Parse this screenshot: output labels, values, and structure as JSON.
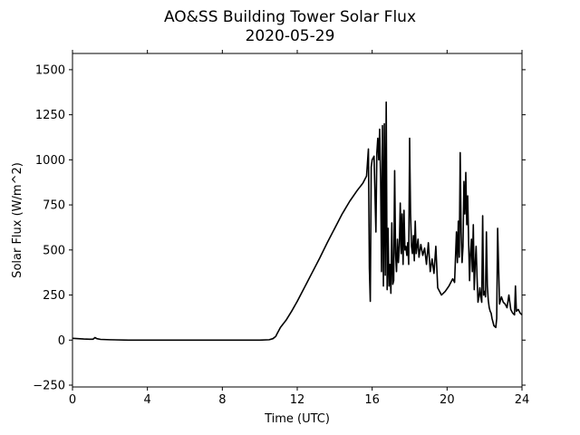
{
  "chart_data": {
    "type": "line",
    "title": "AO&SS Building Tower Solar Flux",
    "subtitle": "2020-05-29",
    "xlabel": "Time (UTC)",
    "ylabel": "Solar Flux (W/m^2)",
    "xlim": [
      0,
      24
    ],
    "ylim": [
      -260,
      1590
    ],
    "xticks": [
      0,
      4,
      8,
      12,
      16,
      20,
      24
    ],
    "yticks": [
      -250,
      0,
      250,
      500,
      750,
      1000,
      1250,
      1500
    ],
    "xtick_labels": [
      "0",
      "4",
      "8",
      "12",
      "16",
      "20",
      "24"
    ],
    "ytick_labels": [
      "−250",
      "0",
      "250",
      "500",
      "750",
      "1000",
      "1250",
      "1500"
    ],
    "grid": false,
    "line_color": "#000000",
    "series": [
      {
        "x": [
          0,
          0.3,
          0.6,
          0.9,
          1.1,
          1.2,
          1.3,
          1.5,
          2.0,
          3.0,
          4.0,
          6.0,
          8.0,
          10.0,
          10.5,
          10.7,
          10.85,
          10.92,
          11.1,
          11.4,
          11.7,
          12.0,
          12.4,
          12.8,
          13.2,
          13.6,
          14.0,
          14.4,
          14.8,
          15.2,
          15.5,
          15.7,
          15.8,
          15.85,
          15.9,
          15.95,
          16.0,
          16.1,
          16.2,
          16.25,
          16.3,
          16.35,
          16.4,
          16.45,
          16.5,
          16.55,
          16.6,
          16.65,
          16.7,
          16.75,
          16.8,
          16.85,
          16.9,
          16.95,
          17.0,
          17.05,
          17.1,
          17.15,
          17.2,
          17.25,
          17.3,
          17.35,
          17.4,
          17.45,
          17.5,
          17.55,
          17.6,
          17.65,
          17.7,
          17.75,
          17.8,
          17.85,
          17.9,
          17.95,
          18.0,
          18.05,
          18.1,
          18.15,
          18.2,
          18.25,
          18.3,
          18.35,
          18.4,
          18.45,
          18.5,
          18.6,
          18.7,
          18.8,
          18.9,
          19.0,
          19.1,
          19.2,
          19.3,
          19.4,
          19.5,
          19.7,
          19.9,
          20.1,
          20.3,
          20.4,
          20.5,
          20.55,
          20.6,
          20.65,
          20.7,
          20.75,
          20.8,
          20.85,
          20.9,
          20.95,
          21.0,
          21.05,
          21.1,
          21.15,
          21.2,
          21.25,
          21.3,
          21.35,
          21.4,
          21.45,
          21.5,
          21.55,
          21.6,
          21.65,
          21.7,
          21.75,
          21.8,
          21.85,
          21.9,
          21.95,
          22.0,
          22.05,
          22.1,
          22.15,
          22.2,
          22.25,
          22.3,
          22.35,
          22.4,
          22.5,
          22.6,
          22.65,
          22.7,
          22.8,
          22.9,
          23.0,
          23.1,
          23.2,
          23.3,
          23.4,
          23.5,
          23.6,
          23.65,
          23.7,
          23.8,
          23.9,
          24.0
        ],
        "y": [
          10,
          8,
          6,
          5,
          5,
          14,
          8,
          4,
          2,
          0,
          0,
          0,
          0,
          0,
          2,
          8,
          20,
          35,
          70,
          110,
          160,
          215,
          295,
          375,
          455,
          540,
          620,
          700,
          770,
          830,
          870,
          910,
          1060,
          400,
          215,
          960,
          1000,
          1020,
          600,
          1040,
          1120,
          1000,
          1170,
          900,
          380,
          1190,
          300,
          1200,
          360,
          1320,
          280,
          620,
          300,
          420,
          260,
          650,
          310,
          330,
          940,
          480,
          380,
          560,
          430,
          520,
          760,
          480,
          700,
          420,
          720,
          500,
          520,
          470,
          540,
          420,
          1120,
          700,
          520,
          480,
          580,
          440,
          660,
          480,
          520,
          560,
          460,
          530,
          470,
          510,
          420,
          540,
          380,
          450,
          370,
          520,
          290,
          250,
          270,
          300,
          340,
          320,
          600,
          430,
          660,
          460,
          1040,
          600,
          430,
          520,
          880,
          700,
          930,
          640,
          800,
          550,
          330,
          480,
          560,
          380,
          640,
          280,
          420,
          520,
          350,
          210,
          240,
          290,
          240,
          210,
          690,
          250,
          270,
          240,
          600,
          300,
          220,
          180,
          160,
          150,
          120,
          80,
          70,
          120,
          620,
          200,
          240,
          210,
          200,
          180,
          250,
          170,
          150,
          140,
          300,
          160,
          170,
          150,
          140
        ]
      }
    ]
  }
}
